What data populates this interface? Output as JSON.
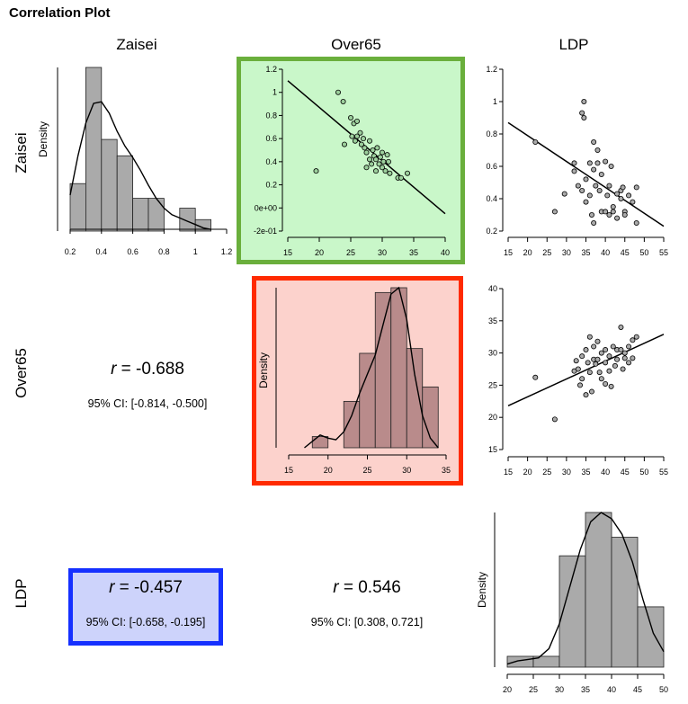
{
  "title": "Correlation Plot",
  "variables": [
    "Zaisei",
    "Over65",
    "LDP"
  ],
  "colors": {
    "bar_fill": "#aaaaaa",
    "bar_fill_highlight": "#b98b8b",
    "green_fill": "#c9f7c9",
    "green_border": "#6aaf3c",
    "red_fill": "#fcd2cc",
    "red_border": "#ff2a00",
    "blue_fill": "#cdd3fb",
    "blue_border": "#1530ff"
  },
  "correlations": {
    "over65_zaisei": {
      "r_label": "r",
      "r_value": "= -0.688",
      "ci": "95% CI: [-0.814, -0.500]"
    },
    "ldp_zaisei": {
      "r_label": "r",
      "r_value": "= -0.457",
      "ci": "95% CI: [-0.658, -0.195]"
    },
    "ldp_over65": {
      "r_label": "r",
      "r_value": "= 0.546",
      "ci": "95% CI: [0.308, 0.721]"
    }
  },
  "chart_data": [
    {
      "id": "hist_zaisei",
      "type": "bar",
      "ylabel": "Density",
      "xlim": [
        0.2,
        1.2
      ],
      "xticks": [
        "0.2",
        "0.4",
        "0.6",
        "0.8",
        "1",
        "1.2"
      ],
      "bins": [
        [
          0.2,
          0.3
        ],
        [
          0.3,
          0.4
        ],
        [
          0.4,
          0.5
        ],
        [
          0.5,
          0.6
        ],
        [
          0.6,
          0.7
        ],
        [
          0.7,
          0.8
        ],
        [
          0.8,
          0.9
        ],
        [
          0.9,
          1.0
        ],
        [
          1.0,
          1.1
        ]
      ],
      "values": [
        0.29,
        1.0,
        0.56,
        0.46,
        0.2,
        0.2,
        0.0,
        0.14,
        0.07
      ],
      "density": [
        [
          0.2,
          0.22
        ],
        [
          0.25,
          0.46
        ],
        [
          0.3,
          0.66
        ],
        [
          0.35,
          0.78
        ],
        [
          0.4,
          0.79
        ],
        [
          0.45,
          0.72
        ],
        [
          0.5,
          0.61
        ],
        [
          0.55,
          0.52
        ],
        [
          0.6,
          0.45
        ],
        [
          0.65,
          0.37
        ],
        [
          0.7,
          0.28
        ],
        [
          0.75,
          0.2
        ],
        [
          0.8,
          0.14
        ],
        [
          0.85,
          0.1
        ],
        [
          0.9,
          0.08
        ],
        [
          0.95,
          0.06
        ],
        [
          1.0,
          0.04
        ],
        [
          1.05,
          0.02
        ],
        [
          1.1,
          0.01
        ]
      ]
    },
    {
      "id": "scatter_zaisei_over65",
      "type": "scatter",
      "xlim": [
        15,
        40
      ],
      "ylim": [
        -0.2,
        1.2
      ],
      "xticks": [
        "15",
        "20",
        "25",
        "30",
        "35",
        "40"
      ],
      "yticks": [
        {
          "v": 1.2,
          "t": "1.2"
        },
        {
          "v": 1,
          "t": "1"
        },
        {
          "v": 0.8,
          "t": "0.8"
        },
        {
          "v": 0.6,
          "t": "0.6"
        },
        {
          "v": 0.4,
          "t": "0.4"
        },
        {
          "v": 0.2,
          "t": "0.2"
        },
        {
          "v": 0,
          "t": "0e+00"
        },
        {
          "v": -0.2,
          "t": "-2e-01"
        }
      ],
      "points": [
        [
          19.5,
          0.32
        ],
        [
          23,
          1.0
        ],
        [
          23.8,
          0.92
        ],
        [
          24,
          0.55
        ],
        [
          25,
          0.78
        ],
        [
          25.2,
          0.62
        ],
        [
          25.5,
          0.73
        ],
        [
          25.7,
          0.58
        ],
        [
          26,
          0.75
        ],
        [
          26,
          0.62
        ],
        [
          26.5,
          0.65
        ],
        [
          26.7,
          0.55
        ],
        [
          27,
          0.6
        ],
        [
          27.2,
          0.52
        ],
        [
          27.5,
          0.48
        ],
        [
          27.5,
          0.35
        ],
        [
          28,
          0.58
        ],
        [
          28,
          0.42
        ],
        [
          28.3,
          0.38
        ],
        [
          28.5,
          0.5
        ],
        [
          28.7,
          0.45
        ],
        [
          29,
          0.32
        ],
        [
          29,
          0.42
        ],
        [
          29.2,
          0.52
        ],
        [
          29.5,
          0.38
        ],
        [
          29.7,
          0.44
        ],
        [
          30,
          0.48
        ],
        [
          30,
          0.35
        ],
        [
          30.2,
          0.4
        ],
        [
          30.5,
          0.32
        ],
        [
          30.8,
          0.46
        ],
        [
          31,
          0.4
        ],
        [
          31.2,
          0.3
        ],
        [
          32.5,
          0.26
        ],
        [
          33,
          0.26
        ],
        [
          34,
          0.3
        ]
      ],
      "fit_line": [
        [
          15,
          1.1
        ],
        [
          40,
          -0.05
        ]
      ]
    },
    {
      "id": "scatter_zaisei_ldp",
      "type": "scatter",
      "xlim": [
        15,
        55
      ],
      "ylim": [
        0.2,
        1.2
      ],
      "xticks": [
        "15",
        "20",
        "25",
        "30",
        "35",
        "40",
        "45",
        "50",
        "55"
      ],
      "yticks": [
        {
          "v": 1.2,
          "t": "1.2"
        },
        {
          "v": 1,
          "t": "1"
        },
        {
          "v": 0.8,
          "t": "0.8"
        },
        {
          "v": 0.6,
          "t": "0.6"
        },
        {
          "v": 0.4,
          "t": "0.4"
        },
        {
          "v": 0.2,
          "t": "0.2"
        }
      ],
      "points": [
        [
          22,
          0.75
        ],
        [
          27,
          0.32
        ],
        [
          29.5,
          0.43
        ],
        [
          32,
          0.62
        ],
        [
          32,
          0.57
        ],
        [
          33,
          0.48
        ],
        [
          34,
          0.45
        ],
        [
          34,
          0.93
        ],
        [
          34.5,
          0.9
        ],
        [
          34.5,
          1.0
        ],
        [
          35,
          0.52
        ],
        [
          35,
          0.38
        ],
        [
          36,
          0.62
        ],
        [
          36,
          0.42
        ],
        [
          36.5,
          0.3
        ],
        [
          37,
          0.58
        ],
        [
          37,
          0.25
        ],
        [
          37,
          0.75
        ],
        [
          37.5,
          0.48
        ],
        [
          38,
          0.7
        ],
        [
          38,
          0.62
        ],
        [
          38.5,
          0.45
        ],
        [
          39,
          0.55
        ],
        [
          39,
          0.32
        ],
        [
          40,
          0.63
        ],
        [
          40,
          0.32
        ],
        [
          40.5,
          0.42
        ],
        [
          41,
          0.48
        ],
        [
          41,
          0.3
        ],
        [
          41.5,
          0.6
        ],
        [
          42,
          0.32
        ],
        [
          42,
          0.35
        ],
        [
          43,
          0.43
        ],
        [
          43,
          0.28
        ],
        [
          44,
          0.45
        ],
        [
          44,
          0.4
        ],
        [
          44.5,
          0.47
        ],
        [
          45,
          0.32
        ],
        [
          45,
          0.3
        ],
        [
          46,
          0.42
        ],
        [
          47,
          0.38
        ],
        [
          48,
          0.47
        ],
        [
          48,
          0.25
        ]
      ],
      "fit_line": [
        [
          15,
          0.87
        ],
        [
          55,
          0.23
        ]
      ]
    },
    {
      "id": "hist_over65",
      "type": "bar",
      "ylabel": "Density",
      "xlim": [
        15,
        35
      ],
      "xticks": [
        "15",
        "20",
        "25",
        "30",
        "35"
      ],
      "bins": [
        [
          18,
          20
        ],
        [
          20,
          22
        ],
        [
          22,
          24
        ],
        [
          24,
          26
        ],
        [
          26,
          28
        ],
        [
          28,
          30
        ],
        [
          30,
          32
        ],
        [
          32,
          34
        ]
      ],
      "values": [
        0.07,
        0.0,
        0.29,
        0.59,
        0.97,
        1.0,
        0.62,
        0.38
      ],
      "density": [
        [
          17,
          0.0
        ],
        [
          18,
          0.04
        ],
        [
          19,
          0.08
        ],
        [
          20,
          0.06
        ],
        [
          21,
          0.05
        ],
        [
          22,
          0.1
        ],
        [
          23,
          0.2
        ],
        [
          24,
          0.34
        ],
        [
          25,
          0.46
        ],
        [
          26,
          0.58
        ],
        [
          27,
          0.77
        ],
        [
          28,
          0.96
        ],
        [
          29,
          1.0
        ],
        [
          30,
          0.8
        ],
        [
          31,
          0.46
        ],
        [
          32,
          0.2
        ],
        [
          33,
          0.06
        ],
        [
          34,
          0.0
        ]
      ]
    },
    {
      "id": "scatter_over65_ldp",
      "type": "scatter",
      "xlim": [
        15,
        55
      ],
      "ylim": [
        15,
        40
      ],
      "xticks": [
        "15",
        "20",
        "25",
        "30",
        "35",
        "40",
        "45",
        "50",
        "55"
      ],
      "yticks": [
        {
          "v": 40,
          "t": "40"
        },
        {
          "v": 35,
          "t": "35"
        },
        {
          "v": 30,
          "t": "30"
        },
        {
          "v": 25,
          "t": "25"
        },
        {
          "v": 20,
          "t": "20"
        },
        {
          "v": 15,
          "t": "15"
        }
      ],
      "points": [
        [
          22,
          26.2
        ],
        [
          27,
          19.7
        ],
        [
          32,
          27.2
        ],
        [
          32.5,
          28.8
        ],
        [
          33,
          27.5
        ],
        [
          33.5,
          25
        ],
        [
          34,
          29.5
        ],
        [
          34,
          26
        ],
        [
          35,
          23.5
        ],
        [
          35,
          30.5
        ],
        [
          35.5,
          28.5
        ],
        [
          36,
          32.5
        ],
        [
          36,
          27
        ],
        [
          36.5,
          24
        ],
        [
          37,
          31
        ],
        [
          37,
          29
        ],
        [
          37.5,
          28.3
        ],
        [
          38,
          31.8
        ],
        [
          38,
          29
        ],
        [
          38.5,
          27
        ],
        [
          39,
          30
        ],
        [
          39,
          26
        ],
        [
          40,
          30.5
        ],
        [
          40,
          28.5
        ],
        [
          40,
          25.2
        ],
        [
          41,
          29.5
        ],
        [
          41,
          27.2
        ],
        [
          41.5,
          24.8
        ],
        [
          42,
          31
        ],
        [
          42.5,
          28
        ],
        [
          43,
          30.5
        ],
        [
          43,
          29
        ],
        [
          44,
          34
        ],
        [
          44,
          30.5
        ],
        [
          44.5,
          27.5
        ],
        [
          45,
          30
        ],
        [
          45,
          29.2
        ],
        [
          46,
          28.5
        ],
        [
          46,
          31
        ],
        [
          47,
          32
        ],
        [
          47,
          29.2
        ],
        [
          48,
          32.5
        ]
      ],
      "fit_line": [
        [
          15,
          21.8
        ],
        [
          55,
          32.9
        ]
      ]
    },
    {
      "id": "hist_ldp",
      "type": "bar",
      "ylabel": "Density",
      "xlim": [
        20,
        50
      ],
      "xticks": [
        "20",
        "25",
        "30",
        "35",
        "40",
        "45",
        "50"
      ],
      "bins": [
        [
          20,
          25
        ],
        [
          25,
          30
        ],
        [
          30,
          35
        ],
        [
          35,
          40
        ],
        [
          40,
          45
        ],
        [
          45,
          50
        ]
      ],
      "values": [
        0.07,
        0.07,
        0.72,
        1.0,
        0.84,
        0.39
      ],
      "density": [
        [
          20,
          0.02
        ],
        [
          22,
          0.04
        ],
        [
          24,
          0.05
        ],
        [
          26,
          0.06
        ],
        [
          28,
          0.12
        ],
        [
          30,
          0.28
        ],
        [
          32,
          0.52
        ],
        [
          34,
          0.76
        ],
        [
          36,
          0.94
        ],
        [
          38,
          1.0
        ],
        [
          40,
          0.96
        ],
        [
          42,
          0.86
        ],
        [
          44,
          0.68
        ],
        [
          46,
          0.44
        ],
        [
          48,
          0.22
        ],
        [
          50,
          0.1
        ]
      ]
    }
  ]
}
